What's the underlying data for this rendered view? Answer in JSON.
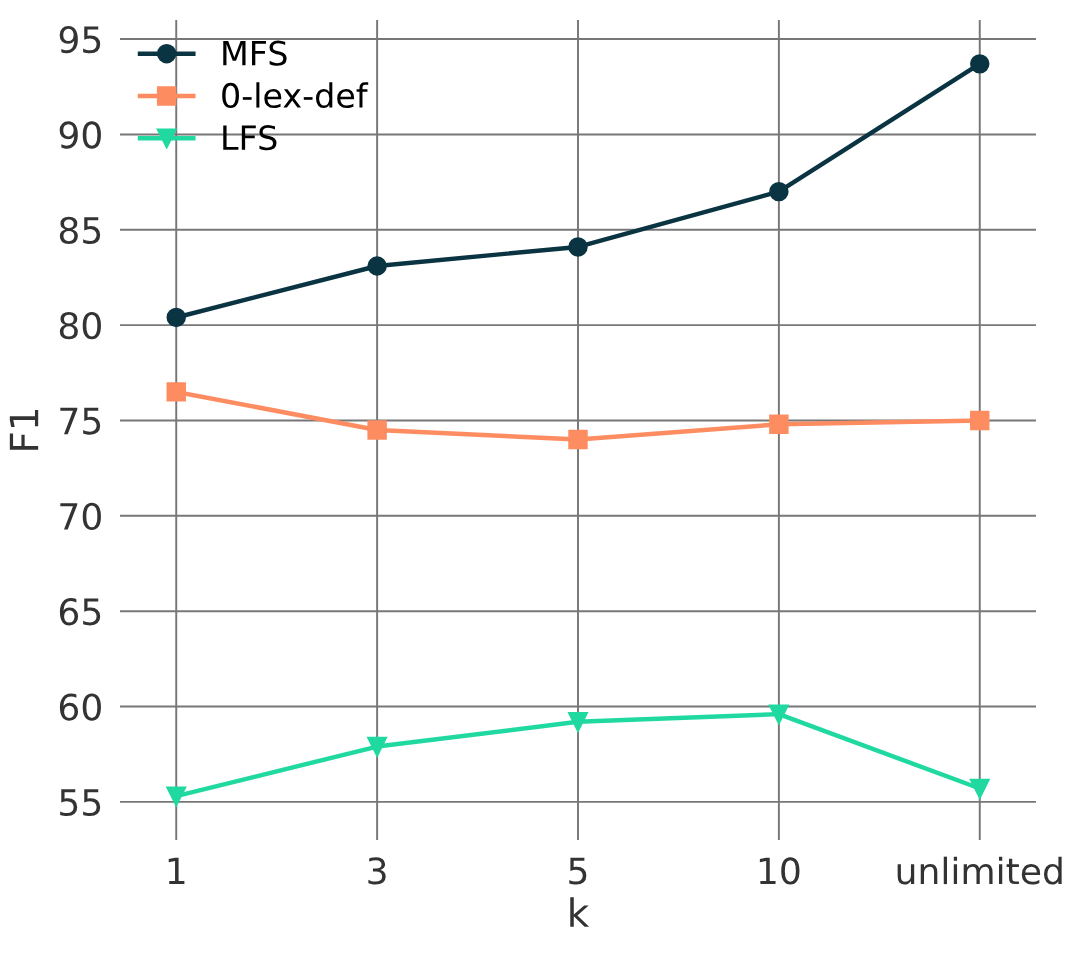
{
  "chart_data": {
    "type": "line",
    "xlabel": "k",
    "ylabel": "F1",
    "categories": [
      "1",
      "3",
      "5",
      "10",
      "unlimited"
    ],
    "series": [
      {
        "name": "MFS",
        "color": "#0b3443",
        "marker": "circle",
        "values": [
          80.4,
          83.1,
          84.1,
          87.0,
          93.7
        ]
      },
      {
        "name": "0-lex-def",
        "color": "#fd8c61",
        "marker": "square",
        "values": [
          76.5,
          74.5,
          74.0,
          74.8,
          75.0
        ]
      },
      {
        "name": "LFS",
        "color": "#20d9a1",
        "marker": "triangle",
        "values": [
          55.3,
          57.9,
          59.2,
          59.6,
          55.7
        ]
      }
    ],
    "ylim": [
      53.0,
      96.0
    ],
    "yticks": [
      55,
      60,
      65,
      70,
      75,
      80,
      85,
      90,
      95
    ],
    "grid": true,
    "legend": "top left",
    "line_style": "solid"
  }
}
